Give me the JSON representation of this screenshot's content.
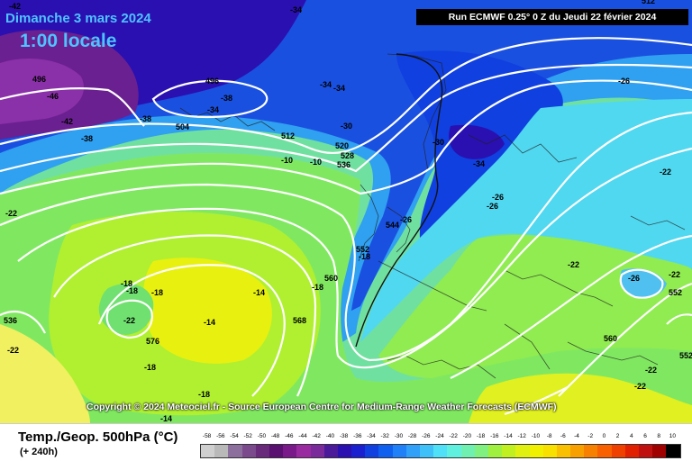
{
  "header": {
    "date": "Dimanche 3 mars 2024",
    "time": "1:00 locale",
    "run": "Run ECMWF 0.25° 0 Z du Jeudi 22 février 2024"
  },
  "copyright": "Copyright © 2024 Meteociel.fr - Source European Centre for Medium-Range Weather Forecasts (ECMWF)",
  "footer": {
    "parameter": "Temp./Geop. 500hPa (°C)",
    "forecast_hours": "(+ 240h)"
  },
  "legend": {
    "values": [
      "-58",
      "-56",
      "-54",
      "-52",
      "-50",
      "-48",
      "-46",
      "-44",
      "-42",
      "-40",
      "-38",
      "-36",
      "-34",
      "-32",
      "-30",
      "-28",
      "-26",
      "-24",
      "-22",
      "-20",
      "-18",
      "-16",
      "-14",
      "-12",
      "-10",
      "-8",
      "-6",
      "-4",
      "-2",
      "0",
      "2",
      "4",
      "6",
      "8",
      "10"
    ],
    "colors": [
      "#cfcfcf",
      "#b9b9b9",
      "#8c6f9c",
      "#7a4a8c",
      "#6a2a7c",
      "#5a1070",
      "#7a1a8a",
      "#9a2aa0",
      "#7a2a9a",
      "#4a1a9a",
      "#2a10b0",
      "#1a20d0",
      "#1040e0",
      "#1060f0",
      "#2080f8",
      "#30a0f8",
      "#40c0f8",
      "#50e0f8",
      "#60f0e0",
      "#70f0b0",
      "#80f080",
      "#a0f040",
      "#c0f020",
      "#e0f010",
      "#f0f000",
      "#f8e000",
      "#f8c000",
      "#f8a000",
      "#f88000",
      "#f86000",
      "#f04000",
      "#e02000",
      "#c01010",
      "#a00000",
      "#000000"
    ]
  },
  "map_labels": {
    "temperature": [
      {
        "text": "-42"
      },
      {
        "text": "-46"
      },
      {
        "text": "-42"
      },
      {
        "text": "-38"
      },
      {
        "text": "-38"
      },
      {
        "text": "-38"
      },
      {
        "text": "-34"
      },
      {
        "text": "-34"
      },
      {
        "text": "-34"
      },
      {
        "text": "-30"
      },
      {
        "text": "-30"
      },
      {
        "text": "-34"
      },
      {
        "text": "-26"
      },
      {
        "text": "-26"
      },
      {
        "text": "-26"
      },
      {
        "text": "-22"
      },
      {
        "text": "-22"
      },
      {
        "text": "-26"
      },
      {
        "text": "-22"
      },
      {
        "text": "-22"
      },
      {
        "text": "-22"
      },
      {
        "text": "-18"
      },
      {
        "text": "-18"
      },
      {
        "text": "-18"
      },
      {
        "text": "-14"
      },
      {
        "text": "-14"
      },
      {
        "text": "-18"
      },
      {
        "text": "-22"
      },
      {
        "text": "-18"
      },
      {
        "text": "-18"
      },
      {
        "text": "-14"
      },
      {
        "text": "-34"
      },
      {
        "text": "-10"
      },
      {
        "text": "-10"
      },
      {
        "text": "-26"
      },
      {
        "text": "-22"
      },
      {
        "text": "-22"
      },
      {
        "text": "-18"
      }
    ],
    "height": [
      {
        "text": "496"
      },
      {
        "text": "496"
      },
      {
        "text": "504"
      },
      {
        "text": "512"
      },
      {
        "text": "520"
      },
      {
        "text": "528"
      },
      {
        "text": "536"
      },
      {
        "text": "544"
      },
      {
        "text": "552"
      },
      {
        "text": "560"
      },
      {
        "text": "568"
      },
      {
        "text": "576"
      },
      {
        "text": "536"
      },
      {
        "text": "552"
      },
      {
        "text": "560"
      },
      {
        "text": "552"
      },
      {
        "text": "512"
      }
    ]
  }
}
